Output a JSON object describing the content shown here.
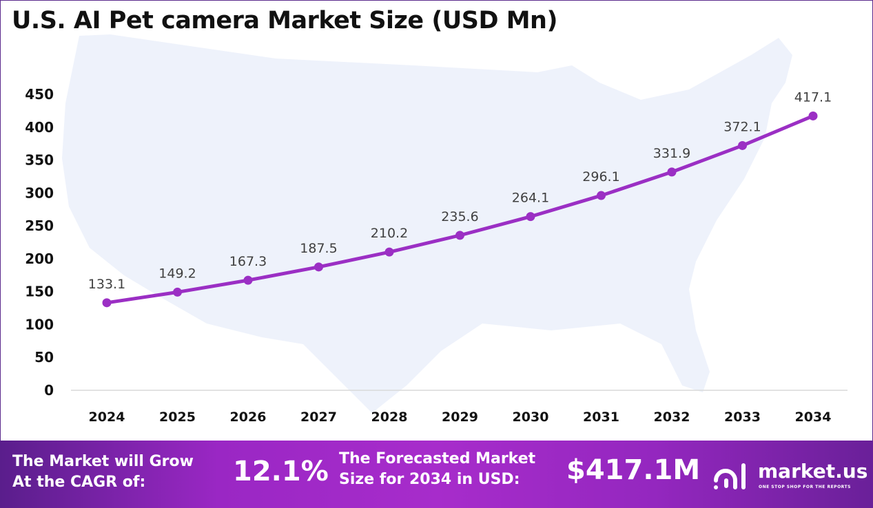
{
  "chart_data": {
    "type": "line",
    "title": "U.S. AI Pet camera Market Size (USD Mn)",
    "xlabel": "",
    "ylabel": "",
    "categories": [
      "2024",
      "2025",
      "2026",
      "2027",
      "2028",
      "2029",
      "2030",
      "2031",
      "2032",
      "2033",
      "2034"
    ],
    "values": [
      133.1,
      149.2,
      167.3,
      187.5,
      210.2,
      235.6,
      264.1,
      296.1,
      331.9,
      372.1,
      417.1
    ],
    "data_labels": [
      "133.1",
      "149.2",
      "167.3",
      "187.5",
      "210.2",
      "235.6",
      "264.1",
      "296.1",
      "331.9",
      "372.1",
      "417.1"
    ],
    "ylim": [
      0,
      450
    ],
    "yticks": [
      "0",
      "50",
      "100",
      "150",
      "200",
      "250",
      "300",
      "350",
      "400",
      "450"
    ],
    "grid": false,
    "line_color": "#9b2fc4"
  },
  "banner": {
    "cagr_label_line1": "The Market will Grow",
    "cagr_label_line2": "At the CAGR of:",
    "cagr_value": "12.1%",
    "forecast_label_line1": "The Forecasted Market",
    "forecast_label_line2": "Size for 2034 in USD:",
    "forecast_value": "$417.1M",
    "logo_name": "market.us",
    "logo_tagline": "ONE STOP SHOP FOR THE REPORTS"
  }
}
